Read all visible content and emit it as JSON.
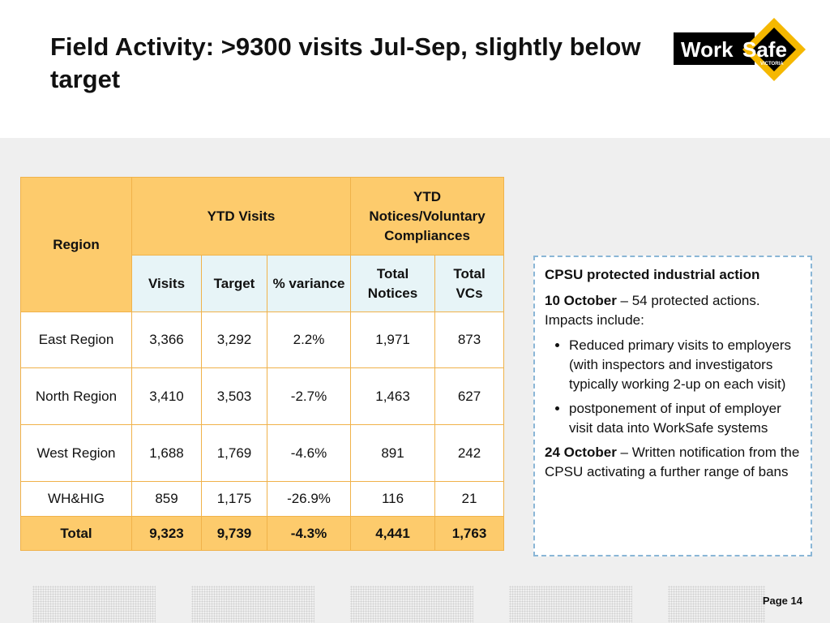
{
  "title": "Field Activity: >9300 visits Jul-Sep, slightly below target",
  "logo": {
    "text_work": "Work",
    "text_safe": "Safe",
    "text_victoria": "VICTORIA",
    "accent": "#f5b800"
  },
  "table": {
    "header": {
      "region": "Region",
      "ytd_visits": "YTD Visits",
      "ytd_notices": "YTD Notices/Voluntary Compliances",
      "visits": "Visits",
      "target": "Target",
      "variance": "% variance",
      "total_notices": "Total Notices",
      "total_vcs": "Total VCs"
    },
    "rows": [
      {
        "region": "East Region",
        "visits": "3,366",
        "target": "3,292",
        "variance": "2.2%",
        "notices": "1,971",
        "vcs": "873"
      },
      {
        "region": "North Region",
        "visits": "3,410",
        "target": "3,503",
        "variance": "-2.7%",
        "notices": "1,463",
        "vcs": "627"
      },
      {
        "region": "West Region",
        "visits": "1,688",
        "target": "1,769",
        "variance": "-4.6%",
        "notices": "891",
        "vcs": "242"
      },
      {
        "region": "WH&HIG",
        "visits": "859",
        "target": "1,175",
        "variance": "-26.9%",
        "notices": "116",
        "vcs": "21"
      }
    ],
    "total": {
      "region": "Total",
      "visits": "9,323",
      "target": "9,739",
      "variance": "-4.3%",
      "notices": "4,441",
      "vcs": "1,763"
    }
  },
  "callout": {
    "heading": "CPSU protected industrial action",
    "item1_date": "10 October",
    "item1_text": " – 54 protected actions. Impacts include:",
    "bullets": [
      "Reduced primary visits to employers (with inspectors and investigators typically working 2-up on each visit)",
      "postponement of input of employer visit data into WorkSafe systems"
    ],
    "item2_date": "24 October",
    "item2_text": " – Written notification from the CPSU activating a further range of bans"
  },
  "footer": {
    "page": "Page 14"
  }
}
